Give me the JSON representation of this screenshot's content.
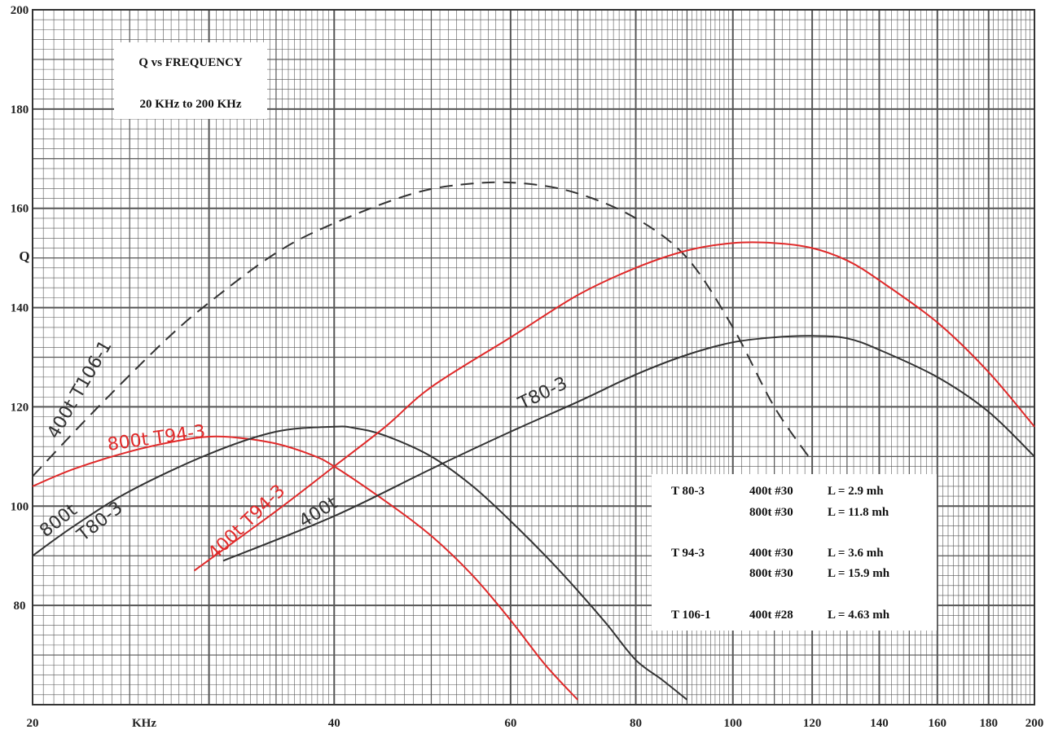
{
  "chart_data": {
    "type": "line",
    "title": "Q vs FREQUENCY",
    "subtitle": "20 KHz to 200 KHz",
    "xlabel": "KHz",
    "ylabel": "Q",
    "xlim": [
      20,
      200
    ],
    "ylim": [
      60,
      200
    ],
    "grid": true,
    "x_ticks": [
      {
        "value": 20,
        "label": "20"
      },
      {
        "value": 40,
        "label": "40"
      },
      {
        "value": 60,
        "label": "60"
      },
      {
        "value": 80,
        "label": "80"
      },
      {
        "value": 100,
        "label": "100"
      },
      {
        "value": 120,
        "label": "120"
      },
      {
        "value": 140,
        "label": "140"
      },
      {
        "value": 160,
        "label": "160"
      },
      {
        "value": 180,
        "label": "180"
      },
      {
        "value": 200,
        "label": "200"
      }
    ],
    "y_ticks": [
      {
        "value": 80,
        "label": "80"
      },
      {
        "value": 100,
        "label": "100"
      },
      {
        "value": 120,
        "label": "120"
      },
      {
        "value": 140,
        "label": "140"
      },
      {
        "value": 160,
        "label": "160"
      },
      {
        "value": 180,
        "label": "180"
      },
      {
        "value": 200,
        "label": "200"
      }
    ],
    "series": [
      {
        "name": "400t T106-1",
        "color": "#333333",
        "dashed": true,
        "x": [
          20,
          23,
          27,
          30,
          35,
          40,
          48,
          55,
          62,
          70,
          80,
          90,
          100,
          110,
          120
        ],
        "y": [
          106,
          119,
          133,
          141,
          151,
          157,
          163,
          165,
          165,
          163,
          158,
          150,
          136,
          120,
          109
        ]
      },
      {
        "name": "800t T94-3",
        "color": "#e02a2a",
        "dashed": false,
        "x": [
          20,
          22,
          25,
          28,
          30,
          32,
          35,
          38,
          40,
          45,
          50,
          55,
          60,
          65,
          70
        ],
        "y": [
          104,
          107.5,
          111,
          113.2,
          114,
          113.8,
          112.6,
          110.3,
          108,
          101,
          94,
          86,
          77,
          68,
          61
        ]
      },
      {
        "name": "800t T80-3",
        "color": "#333333",
        "dashed": false,
        "x": [
          20,
          22,
          25,
          30,
          35,
          40,
          42,
          45,
          50,
          55,
          60,
          65,
          70,
          75,
          80,
          85,
          90
        ],
        "y": [
          90,
          96,
          103,
          110.5,
          115,
          116,
          115.7,
          114.2,
          110,
          104,
          97,
          90,
          83,
          76,
          69,
          65,
          61
        ]
      },
      {
        "name": "400t T94-3",
        "color": "#e02a2a",
        "dashed": false,
        "x": [
          29,
          35,
          40,
          45,
          50,
          60,
          70,
          80,
          90,
          100,
          110,
          120,
          130,
          140,
          160,
          180,
          200
        ],
        "y": [
          87,
          99,
          108,
          116,
          124,
          134,
          142.5,
          148,
          151.5,
          153,
          153,
          152,
          149.5,
          145.5,
          137,
          127,
          116
        ]
      },
      {
        "name": "400t T80-3",
        "color": "#333333",
        "dashed": false,
        "x": [
          31,
          40,
          50,
          60,
          70,
          80,
          90,
          100,
          110,
          120,
          130,
          140,
          160,
          180,
          200
        ],
        "y": [
          89,
          98,
          107.5,
          115,
          121,
          126.5,
          130.5,
          133,
          134,
          134.3,
          133.8,
          131.5,
          126,
          119,
          110
        ]
      }
    ],
    "annotations": [
      {
        "text": "400t T106-1",
        "color": "#333333"
      },
      {
        "text": "800t T94-3",
        "color": "#e02a2a"
      },
      {
        "text": "800t",
        "color": "#333333"
      },
      {
        "text": "T80-3",
        "color": "#333333"
      },
      {
        "text": "400t T94-3",
        "color": "#e02a2a"
      },
      {
        "text": "400t",
        "color": "#333333"
      },
      {
        "text": "T80-3",
        "color": "#333333"
      }
    ],
    "legend_table": [
      {
        "core": "T  80-3",
        "winding": "400t #30",
        "inductance": "L =   2.9  mh"
      },
      {
        "core": "",
        "winding": "800t #30",
        "inductance": "L = 11.8  mh"
      },
      {
        "core": "T  94-3",
        "winding": "400t #30",
        "inductance": "L =   3.6  mh"
      },
      {
        "core": "",
        "winding": "800t #30",
        "inductance": "L = 15.9  mh"
      },
      {
        "core": "T 106-1",
        "winding": "400t #28",
        "inductance": "L =  4.63 mh"
      }
    ]
  }
}
